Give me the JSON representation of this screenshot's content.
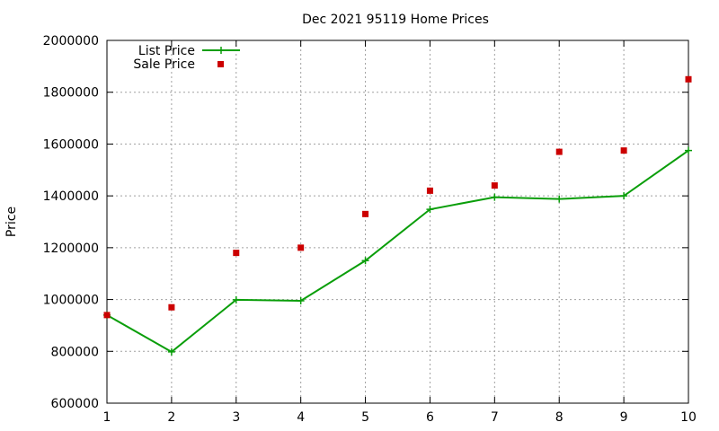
{
  "chart_data": {
    "type": "line",
    "title": "Dec 2021 95119 Home Prices",
    "ylabel": "Price",
    "xlabel": "",
    "x": [
      1,
      2,
      3,
      4,
      5,
      6,
      7,
      8,
      9,
      10
    ],
    "xlim": [
      1,
      10
    ],
    "ylim": [
      600000,
      2000000
    ],
    "yticks": [
      600000,
      800000,
      1000000,
      1200000,
      1400000,
      1600000,
      1800000,
      2000000
    ],
    "grid": true,
    "legend_position": "top-left",
    "series": [
      {
        "name": "List Price",
        "style": "line-with-plus-markers",
        "color": "#0a9e0a",
        "values": [
          940000,
          798000,
          999000,
          995000,
          1150000,
          1348000,
          1395000,
          1388000,
          1400000,
          1575000
        ]
      },
      {
        "name": "Sale Price",
        "style": "square-markers",
        "color": "#cc0000",
        "values": [
          940000,
          970000,
          1180000,
          1200000,
          1330000,
          1420000,
          1440000,
          1570000,
          1575000,
          1850000
        ]
      }
    ]
  }
}
